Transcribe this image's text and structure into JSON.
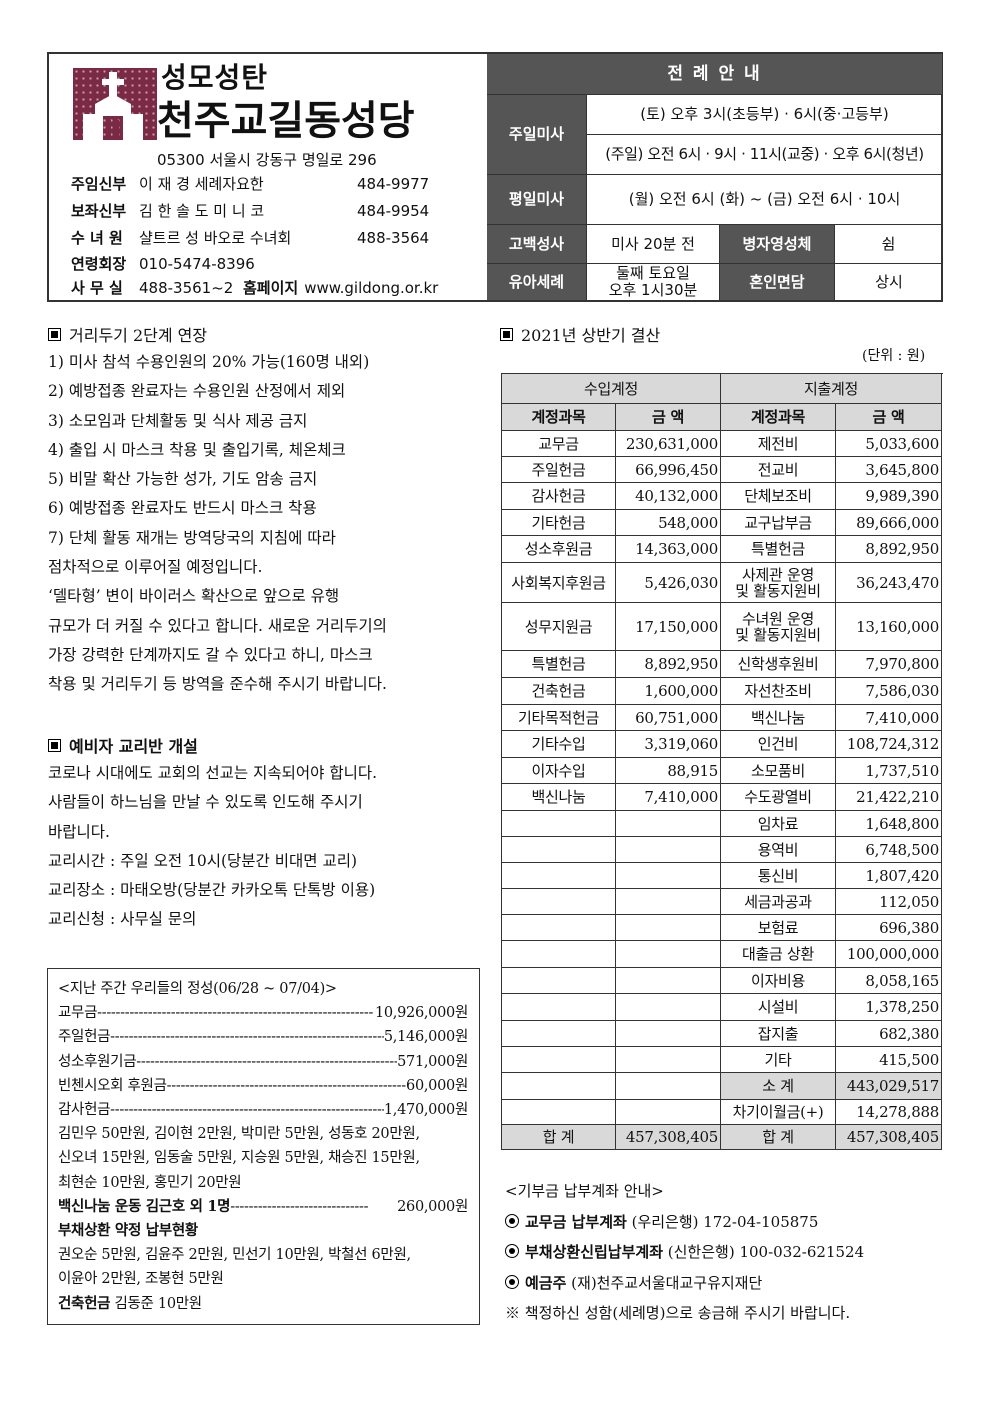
{
  "header": {
    "sub_title": "성모성탄",
    "church_name": "천주교길동성당",
    "address": "05300 서울시 강동구 명일로 296",
    "staff": [
      {
        "role": "주임신부",
        "name": "이 재 경 세례자요한",
        "phone": "484-9977"
      },
      {
        "role": "보좌신부",
        "name": "김 한 솔 도 미 니 코",
        "phone": "484-9954"
      },
      {
        "role": "수 녀 원",
        "name": "샬트르 성 바오로 수녀회",
        "phone": "488-3564"
      },
      {
        "role": "연령회장",
        "name": "010-5474-8396",
        "phone": ""
      }
    ],
    "office": {
      "role": "사 무 실",
      "phone": "488-3561~2",
      "homepage_label": "홈페이지",
      "homepage": "www.gildong.or.kr"
    }
  },
  "liturgy": {
    "title": "전 례 안 내",
    "sunday_label": "주일미사",
    "sunday_sat": "(토) 오후 3시(초등부) · 6시(중·고등부)",
    "sunday_sun": "(주일) 오전 6시 · 9시 · 11시(교중) · 오후 6시(청년)",
    "weekday_label": "평일미사",
    "weekday": "(월) 오전 6시  (화) ~ (금) 오전 6시 · 10시",
    "confession_label": "고백성사",
    "confession": "미사 20분 전",
    "sick_label": "병자영성체",
    "sick": "쉼",
    "baptism_label": "유아세례",
    "baptism_1": "둘째 토요일",
    "baptism_2": "오후 1시30분",
    "marriage_label": "혼인면담",
    "marriage": "상시"
  },
  "distancing": {
    "title": "거리두기 2단계 연장",
    "lines": [
      " 1) 미사 참석 수용인원의 20% 가능(160명 내외)",
      " 2) 예방접종 완료자는 수용인원 산정에서 제외",
      " 3) 소모임과 단체활동 및 식사 제공 금지",
      " 4) 출입 시 마스크 착용 및 출입기록, 체온체크",
      " 5) 비말 확산 가능한 성가, 기도 암송 금지",
      " 6) 예방접종 완료자도 반드시 마스크 착용",
      " 7) 단체 활동 재개는 방역당국의 지침에 따라",
      "점차적으로 이루어질 예정입니다.",
      "  ‘델타형’ 변이 바이러스 확산으로 앞으로 유행",
      "규모가 더 커질 수 있다고 합니다. 새로운 거리두기의",
      "가장 강력한 단계까지도 갈 수 있다고 하니, 마스크",
      "착용 및 거리두기 등 방역을 준수해 주시기 바랍니다."
    ]
  },
  "catechumen": {
    "title": "예비자 교리반 개설",
    "lines": [
      " 코로나 시대에도 교회의 선교는 지속되어야 합니다.",
      "사람들이 하느님을 만날 수 있도록 인도해 주시기",
      "바랍니다.",
      " 교리시간 : 주일 오전 10시(당분간 비대면 교리)",
      " 교리장소 : 마태오방(당분간 카카오톡 단톡방 이용)",
      " 교리신청 : 사무실 문의"
    ]
  },
  "offerings": {
    "title": "<지난 주간 우리들의 정성(06/28 ~ 07/04)>",
    "items": [
      {
        "label": "교무금 ",
        "amount": "10,926,000원"
      },
      {
        "label": "주일헌금 ",
        "amount": "5,146,000원"
      },
      {
        "label": "성소후원기금",
        "amount": "571,000원"
      },
      {
        "label": "빈첸시오회 후원금",
        "amount": "60,000원"
      },
      {
        "label": "감사헌금 ",
        "amount": "1,470,000원"
      }
    ],
    "thanks_lines": [
      "김민우 50만원, 김이현 2만원, 박미란 5만원, 성동호 20만원,",
      "신오녀 15만원, 임동술 5만원, 지승원 5만원, 채승진 15만원,",
      "최현순 10만원, 홍민기 20만원"
    ],
    "vaccine": {
      "label": "백신나눔 운동 김근호 외 1명 ",
      "amount": "260,000원"
    },
    "debt_title": "부채상환 약정 납부현황",
    "debt_lines": [
      "권오순 5만원, 김윤주 2만원, 민선기 10만원, 박철선 6만원,",
      "이윤아 2만원, 조봉현 5만원"
    ],
    "building_label": "건축헌금",
    "building": " 김동준 10만원"
  },
  "finance": {
    "title": "2021년 상반기 결산",
    "unit": "(단위 : 원)",
    "income_header": "수입계정",
    "expense_header": "지출계정",
    "col_item": "계정과목",
    "col_amount": "금  액",
    "income": [
      [
        "교무금",
        "230,631,000"
      ],
      [
        "주일헌금",
        "66,996,450"
      ],
      [
        "감사헌금",
        "40,132,000"
      ],
      [
        "기타헌금",
        "548,000"
      ],
      [
        "성소후원금",
        "14,363,000"
      ],
      [
        "사회복지후원금",
        "5,426,030"
      ],
      [
        "성무지원금",
        "17,150,000"
      ],
      [
        "특별헌금",
        "8,892,950"
      ],
      [
        "건축헌금",
        "1,600,000"
      ],
      [
        "기타목적헌금",
        "60,751,000"
      ],
      [
        "기타수입",
        "3,319,060"
      ],
      [
        "이자수입",
        "88,915"
      ],
      [
        "백신나눔",
        "7,410,000"
      ]
    ],
    "expense": [
      [
        "제전비",
        "5,033,600"
      ],
      [
        "전교비",
        "3,645,800"
      ],
      [
        "단체보조비",
        "9,989,390"
      ],
      [
        "교구납부금",
        "89,666,000"
      ],
      [
        "특별헌금",
        "8,892,950"
      ],
      [
        "사제관 운영\n및 활동지원비",
        "36,243,470"
      ],
      [
        "수녀원 운영\n및 활동지원비",
        "13,160,000"
      ],
      [
        "신학생후원비",
        "7,970,800"
      ],
      [
        "자선찬조비",
        "7,586,030"
      ],
      [
        "백신나눔",
        "7,410,000"
      ],
      [
        "인건비",
        "108,724,312"
      ],
      [
        "소모품비",
        "1,737,510"
      ],
      [
        "수도광열비",
        "21,422,210"
      ],
      [
        "임차료",
        "1,648,800"
      ],
      [
        "용역비",
        "6,748,500"
      ],
      [
        "통신비",
        "1,807,420"
      ],
      [
        "세금과공과",
        "112,050"
      ],
      [
        "보험료",
        "696,380"
      ],
      [
        "대출금 상환",
        "100,000,000"
      ],
      [
        "이자비용",
        "8,058,165"
      ],
      [
        "시설비",
        "1,378,250"
      ],
      [
        "잡지출",
        "682,380"
      ],
      [
        "기타",
        "415,500"
      ]
    ],
    "subtotal_label": "소  계",
    "subtotal": "443,029,517",
    "carryover_label": "차기이월금(+)",
    "carryover": "14,278,888",
    "total_label": "합  계",
    "income_total": "457,308,405",
    "expense_total": "457,308,405"
  },
  "donation": {
    "title": "<기부금 납부계좌 안내>",
    "accounts": [
      {
        "label": "교무금 납부계좌",
        "detail": " (우리은행) 172-04-105875"
      },
      {
        "label": "부채상환신립납부계좌",
        "detail": " (신한은행) 100-032-621524"
      },
      {
        "label": "예금주",
        "detail": " (재)천주교서울대교구유지재단"
      }
    ],
    "note": "※ 책정하신 성함(세례명)으로 송금해 주시기 바랍니다."
  },
  "colors": {
    "logo": "#7a2a44",
    "header_dark": "#555555",
    "table_gray": "#d9d9d9"
  }
}
